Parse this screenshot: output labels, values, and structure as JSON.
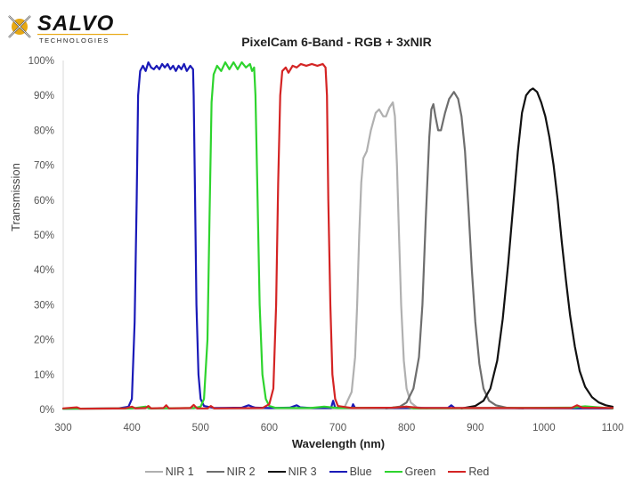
{
  "logo": {
    "brand": "SALVO",
    "sub": "TECHNOLOGIES",
    "accent": "#E8A812"
  },
  "chart_data": {
    "type": "line",
    "title": "PixelCam 6-Band  - RGB + 3xNIR",
    "xlabel": "Wavelength (nm)",
    "ylabel": "Transmission",
    "xlim": [
      300,
      1100
    ],
    "ylim": [
      0,
      100
    ],
    "x_ticks": [
      300,
      400,
      500,
      600,
      700,
      800,
      900,
      1000,
      1100
    ],
    "y_ticks": [
      "0%",
      "10%",
      "20%",
      "30%",
      "40%",
      "50%",
      "60%",
      "70%",
      "80%",
      "90%",
      "100%"
    ],
    "grid": false,
    "legend_position": "bottom",
    "series": [
      {
        "name": "NIR 1",
        "color": "#B0B0B0",
        "points": [
          [
            690,
            0.3
          ],
          [
            710,
            0.8
          ],
          [
            720,
            5
          ],
          [
            725,
            15
          ],
          [
            728,
            30
          ],
          [
            731,
            50
          ],
          [
            734,
            65
          ],
          [
            737,
            72
          ],
          [
            742,
            74
          ],
          [
            748,
            80
          ],
          [
            755,
            85
          ],
          [
            760,
            86
          ],
          [
            766,
            84
          ],
          [
            770,
            84
          ],
          [
            775,
            86.5
          ],
          [
            780,
            88
          ],
          [
            783,
            84
          ],
          [
            786,
            70
          ],
          [
            789,
            50
          ],
          [
            792,
            30
          ],
          [
            796,
            14
          ],
          [
            800,
            6
          ],
          [
            806,
            2
          ],
          [
            815,
            0.6
          ],
          [
            830,
            0.3
          ]
        ]
      },
      {
        "name": "NIR 2",
        "color": "#6E6E6E",
        "points": [
          [
            770,
            0.3
          ],
          [
            790,
            0.8
          ],
          [
            800,
            2
          ],
          [
            810,
            6
          ],
          [
            818,
            15
          ],
          [
            823,
            30
          ],
          [
            828,
            55
          ],
          [
            833,
            78
          ],
          [
            836,
            86
          ],
          [
            839,
            87.5
          ],
          [
            842,
            84
          ],
          [
            846,
            80
          ],
          [
            850,
            80
          ],
          [
            856,
            85
          ],
          [
            862,
            89
          ],
          [
            869,
            91
          ],
          [
            875,
            89
          ],
          [
            880,
            84
          ],
          [
            885,
            74
          ],
          [
            890,
            58
          ],
          [
            895,
            40
          ],
          [
            900,
            25
          ],
          [
            906,
            13
          ],
          [
            912,
            6
          ],
          [
            920,
            2.5
          ],
          [
            930,
            1.2
          ],
          [
            945,
            0.5
          ],
          [
            970,
            0.3
          ]
        ]
      },
      {
        "name": "NIR 3",
        "color": "#111111",
        "points": [
          [
            880,
            0.3
          ],
          [
            900,
            1
          ],
          [
            912,
            2.5
          ],
          [
            922,
            6
          ],
          [
            932,
            14
          ],
          [
            940,
            26
          ],
          [
            948,
            42
          ],
          [
            955,
            58
          ],
          [
            962,
            74
          ],
          [
            968,
            85
          ],
          [
            974,
            90
          ],
          [
            980,
            91.5
          ],
          [
            984,
            92
          ],
          [
            990,
            91
          ],
          [
            996,
            88
          ],
          [
            1002,
            84
          ],
          [
            1008,
            78
          ],
          [
            1014,
            70
          ],
          [
            1020,
            60
          ],
          [
            1026,
            48
          ],
          [
            1032,
            37
          ],
          [
            1038,
            27
          ],
          [
            1045,
            18
          ],
          [
            1052,
            11
          ],
          [
            1060,
            6.5
          ],
          [
            1070,
            3.5
          ],
          [
            1080,
            2
          ],
          [
            1090,
            1.2
          ],
          [
            1100,
            0.8
          ]
        ]
      },
      {
        "name": "Blue",
        "color": "#1A1AB8",
        "points": [
          [
            300,
            0.2
          ],
          [
            380,
            0.3
          ],
          [
            395,
            0.8
          ],
          [
            400,
            3
          ],
          [
            404,
            25
          ],
          [
            407,
            60
          ],
          [
            409,
            90
          ],
          [
            412,
            97
          ],
          [
            416,
            98.5
          ],
          [
            420,
            97
          ],
          [
            424,
            99.5
          ],
          [
            428,
            98
          ],
          [
            432,
            97.5
          ],
          [
            436,
            98.5
          ],
          [
            440,
            97.5
          ],
          [
            444,
            99
          ],
          [
            448,
            98
          ],
          [
            452,
            99
          ],
          [
            456,
            97.5
          ],
          [
            460,
            98.5
          ],
          [
            464,
            97
          ],
          [
            468,
            98.5
          ],
          [
            472,
            97.5
          ],
          [
            476,
            99
          ],
          [
            480,
            97
          ],
          [
            485,
            98.5
          ],
          [
            489,
            97.5
          ],
          [
            490,
            90
          ],
          [
            492,
            60
          ],
          [
            494,
            30
          ],
          [
            497,
            10
          ],
          [
            500,
            3
          ],
          [
            505,
            1
          ],
          [
            520,
            0.4
          ],
          [
            560,
            0.5
          ],
          [
            570,
            1.2
          ],
          [
            575,
            0.8
          ],
          [
            580,
            0.5
          ],
          [
            600,
            0.4
          ],
          [
            630,
            0.5
          ],
          [
            640,
            1.2
          ],
          [
            645,
            0.6
          ],
          [
            660,
            0.4
          ],
          [
            690,
            0.4
          ],
          [
            693,
            2.5
          ],
          [
            696,
            0.5
          ],
          [
            720,
            0.4
          ],
          [
            722,
            1.5
          ],
          [
            725,
            0.4
          ],
          [
            860,
            0.4
          ],
          [
            865,
            1.2
          ],
          [
            870,
            0.4
          ],
          [
            1100,
            0.3
          ]
        ]
      },
      {
        "name": "Green",
        "color": "#2ED42E",
        "points": [
          [
            300,
            0.2
          ],
          [
            400,
            0.3
          ],
          [
            420,
            0.8
          ],
          [
            425,
            0.3
          ],
          [
            490,
            0.4
          ],
          [
            500,
            0.8
          ],
          [
            505,
            3
          ],
          [
            510,
            20
          ],
          [
            513,
            55
          ],
          [
            516,
            88
          ],
          [
            519,
            96
          ],
          [
            524,
            98.5
          ],
          [
            530,
            97
          ],
          [
            536,
            99.5
          ],
          [
            542,
            97.5
          ],
          [
            548,
            99.5
          ],
          [
            554,
            97.5
          ],
          [
            560,
            99.5
          ],
          [
            566,
            98
          ],
          [
            572,
            99
          ],
          [
            575,
            97
          ],
          [
            578,
            98
          ],
          [
            580,
            90
          ],
          [
            583,
            60
          ],
          [
            586,
            30
          ],
          [
            590,
            10
          ],
          [
            595,
            3
          ],
          [
            600,
            1
          ],
          [
            610,
            0.4
          ],
          [
            660,
            0.4
          ],
          [
            680,
            0.8
          ],
          [
            700,
            0.4
          ],
          [
            780,
            0.5
          ],
          [
            800,
            0.8
          ],
          [
            810,
            0.3
          ],
          [
            1040,
            0.5
          ],
          [
            1060,
            0.9
          ],
          [
            1100,
            0.3
          ]
        ]
      },
      {
        "name": "Red",
        "color": "#D42424",
        "points": [
          [
            300,
            0.3
          ],
          [
            320,
            0.6
          ],
          [
            325,
            0.2
          ],
          [
            390,
            0.3
          ],
          [
            400,
            0.8
          ],
          [
            405,
            0.3
          ],
          [
            420,
            0.4
          ],
          [
            424,
            1
          ],
          [
            428,
            0.3
          ],
          [
            446,
            0.4
          ],
          [
            450,
            1.2
          ],
          [
            454,
            0.3
          ],
          [
            485,
            0.4
          ],
          [
            490,
            1.3
          ],
          [
            495,
            0.3
          ],
          [
            510,
            0.3
          ],
          [
            515,
            1
          ],
          [
            520,
            0.3
          ],
          [
            590,
            0.4
          ],
          [
            600,
            1.5
          ],
          [
            606,
            6
          ],
          [
            610,
            30
          ],
          [
            613,
            65
          ],
          [
            616,
            90
          ],
          [
            619,
            97
          ],
          [
            624,
            98
          ],
          [
            628,
            96.5
          ],
          [
            634,
            98.5
          ],
          [
            640,
            98
          ],
          [
            646,
            99
          ],
          [
            654,
            98.5
          ],
          [
            662,
            99
          ],
          [
            670,
            98.5
          ],
          [
            678,
            99
          ],
          [
            682,
            98
          ],
          [
            684,
            90
          ],
          [
            686,
            60
          ],
          [
            689,
            30
          ],
          [
            692,
            10
          ],
          [
            696,
            3
          ],
          [
            700,
            1
          ],
          [
            720,
            0.4
          ],
          [
            780,
            0.5
          ],
          [
            800,
            0.8
          ],
          [
            820,
            0.4
          ],
          [
            1040,
            0.4
          ],
          [
            1048,
            1.2
          ],
          [
            1056,
            0.5
          ],
          [
            1100,
            0.4
          ]
        ]
      }
    ]
  }
}
